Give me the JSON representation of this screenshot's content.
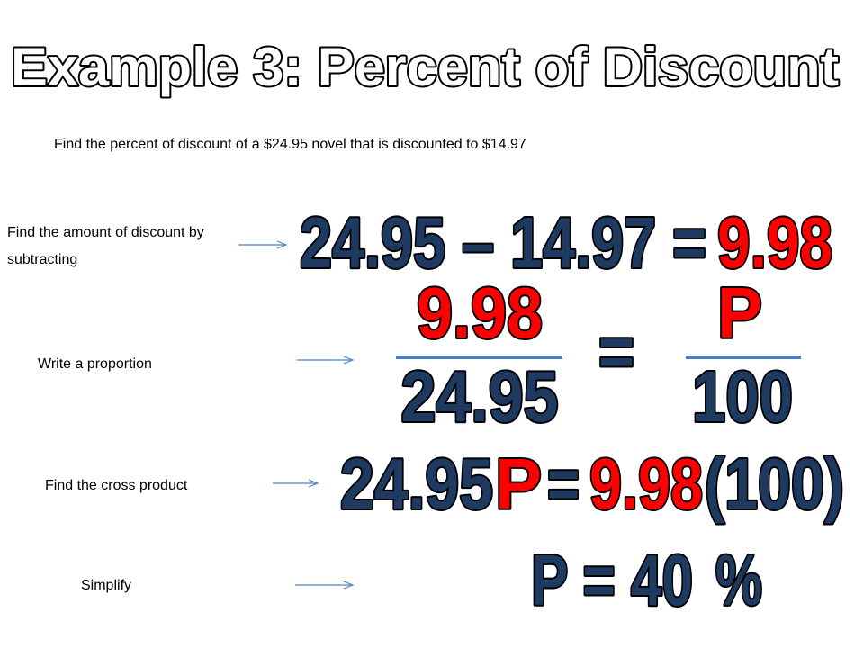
{
  "title": "Example 3: Percent of Discount",
  "problem": "Find the percent of discount of a $24.95 novel that is discounted to $14.97",
  "steps": [
    {
      "label": "Find the amount of discount by subtracting",
      "parts": [
        {
          "text": "24.95 – 14.97 =",
          "color": "#1f3a60"
        },
        {
          "text": "9.98",
          "color": "#ff0000"
        }
      ]
    },
    {
      "label": "Write a proportion",
      "parts": [
        {
          "text": "9.98",
          "color": "#ff0000"
        },
        {
          "text": "24.95",
          "color": "#1f3a60"
        },
        {
          "text": "=",
          "color": "#1f3a60"
        },
        {
          "text": "P",
          "color": "#ff0000"
        },
        {
          "text": "100",
          "color": "#1f3a60"
        }
      ]
    },
    {
      "label": "Find the cross product",
      "parts": [
        {
          "text": "24.95",
          "color": "#1f3a60"
        },
        {
          "text": "P",
          "color": "#ff0000"
        },
        {
          "text": "=",
          "color": "#1f3a60"
        },
        {
          "text": "9.98",
          "color": "#ff0000"
        },
        {
          "text": "(100)",
          "color": "#1f3a60"
        }
      ]
    },
    {
      "label": "Simplify",
      "parts": [
        {
          "text": "P = 40",
          "color": "#1f3a60"
        },
        {
          "text": "%",
          "color": "#1f3a60"
        }
      ]
    }
  ]
}
